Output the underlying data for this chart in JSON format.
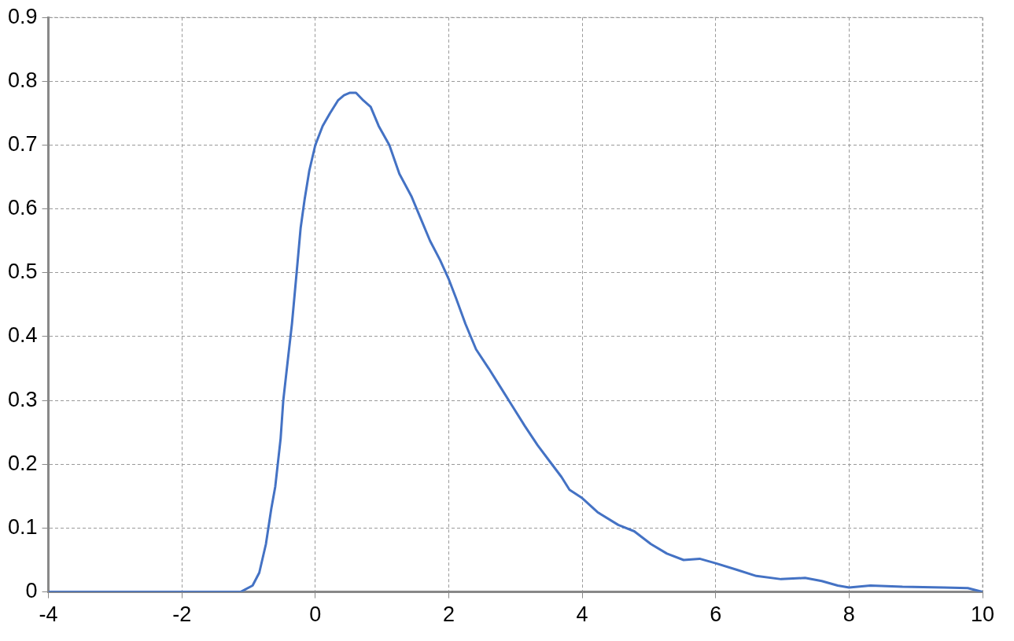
{
  "chart_data": {
    "type": "line",
    "color": "#4472c4",
    "marker": "none",
    "line_style": "solid",
    "grid": true,
    "legend": false,
    "x": [
      -4,
      -2,
      -1.12,
      -0.94,
      -0.84,
      -0.74,
      -0.66,
      -0.6,
      -0.52,
      -0.48,
      -0.41,
      -0.35,
      -0.28,
      -0.22,
      -0.16,
      -0.09,
      0,
      0.11,
      0.22,
      0.34,
      0.43,
      0.52,
      0.61,
      0.72,
      0.83,
      0.95,
      1.11,
      1.26,
      1.44,
      1.58,
      1.72,
      1.87,
      2,
      2.11,
      2.25,
      2.41,
      2.6,
      2.78,
      2.96,
      3.14,
      3.33,
      3.51,
      3.69,
      3.81,
      4,
      4.23,
      4.54,
      4.78,
      5.03,
      5.27,
      5.52,
      5.76,
      6,
      6.31,
      6.61,
      6.98,
      7.34,
      7.59,
      7.83,
      8,
      8.32,
      8.8,
      9.42,
      9.78,
      10
    ],
    "values": [
      0,
      0,
      0,
      0.01,
      0.03,
      0.075,
      0.13,
      0.165,
      0.24,
      0.3,
      0.365,
      0.42,
      0.5,
      0.57,
      0.615,
      0.66,
      0.7,
      0.73,
      0.75,
      0.77,
      0.778,
      0.782,
      0.782,
      0.77,
      0.76,
      0.73,
      0.7,
      0.655,
      0.62,
      0.585,
      0.55,
      0.52,
      0.49,
      0.46,
      0.42,
      0.38,
      0.35,
      0.32,
      0.29,
      0.26,
      0.23,
      0.205,
      0.18,
      0.16,
      0.147,
      0.125,
      0.105,
      0.095,
      0.075,
      0.06,
      0.05,
      0.052,
      0.045,
      0.035,
      0.025,
      0.02,
      0.022,
      0.017,
      0.01,
      0.007,
      0.01,
      0.008,
      0.007,
      0.006,
      0
    ],
    "xlim": [
      -4,
      10
    ],
    "xticks": [
      -4,
      -2,
      0,
      2,
      4,
      6,
      8,
      10
    ],
    "ylim": [
      0,
      0.9
    ],
    "yticks": [
      0,
      0.1,
      0.2,
      0.3,
      0.4,
      0.5,
      0.6,
      0.7,
      0.8,
      0.9
    ]
  }
}
